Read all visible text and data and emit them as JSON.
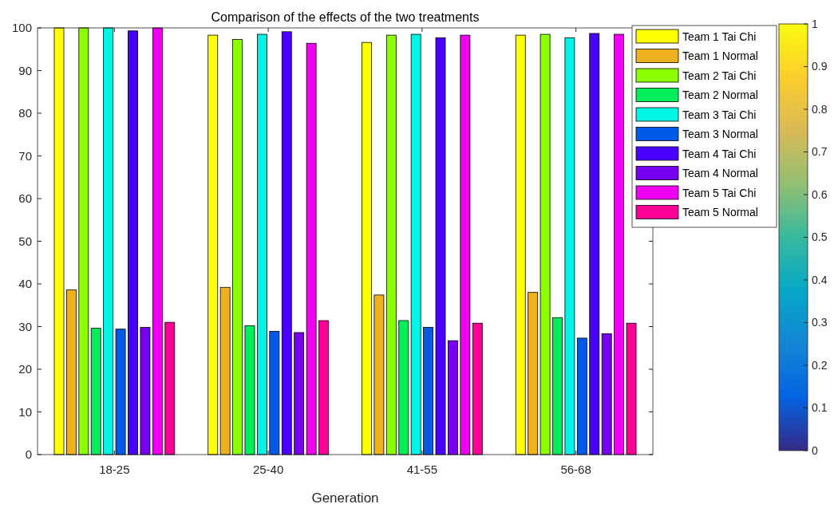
{
  "chart_data": {
    "type": "bar",
    "title": "Comparison of the effects of the two treatments",
    "xlabel": "Generation",
    "categories": [
      "18-25",
      "25-40",
      "41-55",
      "56-68"
    ],
    "series": [
      {
        "name": "Team 1 Tai Chi",
        "color": "#ffff00",
        "values": [
          100,
          98.3,
          96.6,
          98.3
        ]
      },
      {
        "name": "Team 1 Normal",
        "color": "#edb120",
        "values": [
          38.6,
          39.2,
          37.4,
          38.0
        ]
      },
      {
        "name": "Team 2 Tai Chi",
        "color": "#8cff00",
        "values": [
          100,
          97.3,
          98.3,
          98.5
        ]
      },
      {
        "name": "Team 2 Normal",
        "color": "#00ee5a",
        "values": [
          29.6,
          30.2,
          31.4,
          32.1
        ]
      },
      {
        "name": "Team 3 Tai Chi",
        "color": "#00f5e6",
        "values": [
          100,
          98.5,
          98.5,
          97.7
        ]
      },
      {
        "name": "Team 3 Normal",
        "color": "#005ae8",
        "values": [
          29.4,
          28.9,
          29.8,
          27.3
        ]
      },
      {
        "name": "Team 4 Tai Chi",
        "color": "#4800ff",
        "values": [
          99.3,
          99.1,
          97.7,
          98.7
        ]
      },
      {
        "name": "Team 4 Normal",
        "color": "#7800f0",
        "values": [
          29.8,
          28.6,
          26.7,
          28.3
        ]
      },
      {
        "name": "Team 5 Tai Chi",
        "color": "#f000f0",
        "values": [
          100,
          96.4,
          98.3,
          98.5
        ]
      },
      {
        "name": "Team 5 Normal",
        "color": "#ff0096",
        "values": [
          31.0,
          31.4,
          30.8,
          30.8
        ]
      }
    ],
    "ylim": [
      0,
      100
    ],
    "yticks": [
      0,
      10,
      20,
      30,
      40,
      50,
      60,
      70,
      80,
      90,
      100
    ],
    "legend": "top right",
    "clim": [
      0,
      1
    ],
    "cticks": [
      0,
      0.1,
      0.2,
      0.3,
      0.4,
      0.5,
      0.6,
      0.7,
      0.8,
      0.9,
      1
    ]
  }
}
